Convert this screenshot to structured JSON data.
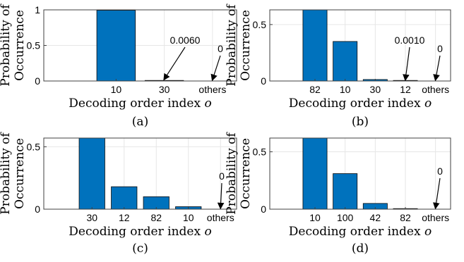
{
  "figure": {
    "panels_meta": "2x2 grid of bar charts",
    "bar_color": "#0072BD",
    "grid_color": "#e6e6e6",
    "axis_color": "#404040"
  },
  "chart_data": [
    {
      "type": "bar",
      "caption": "(a)",
      "xlabel": "Decoding order index",
      "xlabel_var": "o",
      "ylabel": [
        "Probability of",
        "Occurrence"
      ],
      "ylim": [
        0,
        1
      ],
      "yticks": [
        0,
        0.5,
        1
      ],
      "ytick_labels": [
        "0",
        "0.5",
        "1"
      ],
      "grid": true,
      "categories": [
        "",
        "10",
        "30",
        "others"
      ],
      "values": [
        0,
        0.994,
        0.006,
        0
      ],
      "annotations": [
        {
          "text": "0.0060",
          "category": "30"
        },
        {
          "text": "0",
          "category": "others"
        }
      ]
    },
    {
      "type": "bar",
      "caption": "(b)",
      "xlabel": "Decoding order index",
      "xlabel_var": "o",
      "ylabel": [
        "Probability of",
        "Occurrence"
      ],
      "ylim": [
        0,
        0.63
      ],
      "yticks": [
        0,
        0.5
      ],
      "ytick_labels": [
        "0",
        "0.5"
      ],
      "grid": true,
      "categories": [
        "",
        "82",
        "10",
        "30",
        "12",
        "others"
      ],
      "values": [
        0,
        0.63,
        0.35,
        0.013,
        0.001,
        0
      ],
      "annotations": [
        {
          "text": "0.0010",
          "category": "12"
        },
        {
          "text": "0",
          "category": "others"
        }
      ]
    },
    {
      "type": "bar",
      "caption": "(c)",
      "xlabel": "Decoding order index",
      "xlabel_var": "o",
      "ylabel": [
        "Probability of",
        "Occurrence"
      ],
      "ylim": [
        0,
        0.57
      ],
      "yticks": [
        0,
        0.5
      ],
      "ytick_labels": [
        "0",
        "0.5"
      ],
      "grid": true,
      "categories": [
        "",
        "30",
        "12",
        "82",
        "10",
        "others"
      ],
      "values": [
        0,
        0.57,
        0.18,
        0.1,
        0.02,
        0
      ],
      "annotations": [
        {
          "text": "0",
          "category": "others"
        }
      ]
    },
    {
      "type": "bar",
      "caption": "(d)",
      "xlabel": "Decoding order index",
      "xlabel_var": "o",
      "ylabel": [
        "Probability of",
        "Occurrence"
      ],
      "ylim": [
        0,
        0.62
      ],
      "yticks": [
        0,
        0.5
      ],
      "ytick_labels": [
        "0",
        "0.5"
      ],
      "grid": true,
      "categories": [
        "",
        "10",
        "100",
        "42",
        "82",
        "others"
      ],
      "values": [
        0,
        0.62,
        0.31,
        0.05,
        0.005,
        0
      ],
      "annotations": [
        {
          "text": "0",
          "category": "others"
        }
      ]
    }
  ]
}
